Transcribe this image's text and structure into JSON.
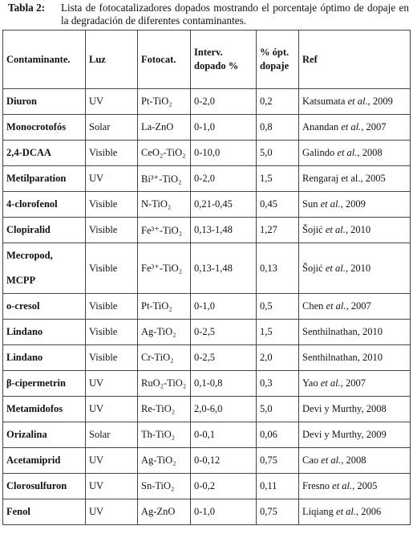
{
  "caption": {
    "label": "Tabla 2:",
    "text": "Lista de fotocatalizadores dopados mostrando el porcentaje óptimo de dopaje en la degradación de diferentes contaminantes."
  },
  "headers": [
    "Contaminante.",
    "Luz",
    "Fotocat.",
    "Interv. dopado %",
    "% ópt. dopaje",
    "Ref"
  ],
  "rows": [
    {
      "contaminante": "Diuron",
      "luz": "UV",
      "fotocat": "Pt-TiO₂",
      "interv": "0-2,0",
      "opt": "0,2",
      "ref_a": "Katsumata ",
      "ref_i": "et al.",
      "ref_b": ", 2009"
    },
    {
      "contaminante": "Monocrotofós",
      "luz": "Solar",
      "fotocat": "La-ZnO",
      "interv": "0-1,0",
      "opt": "0,8",
      "ref_a": "Anandan ",
      "ref_i": "et al.",
      "ref_b": ", 2007"
    },
    {
      "contaminante": "2,4-DCAA",
      "luz": "Visible",
      "fotocat": "CeO₂-TiO₂",
      "interv": "0-10,0",
      "opt": "5,0",
      "ref_a": "Galindo ",
      "ref_i": "et al.",
      "ref_b": ", 2008"
    },
    {
      "contaminante": "Metilparation",
      "luz": "UV",
      "fotocat": "Bi³⁺-TiO₂",
      "interv": "0-2,0",
      "opt": "1,5",
      "ref_a": "Rengaraj et al., 2005",
      "ref_i": "",
      "ref_b": ""
    },
    {
      "contaminante": "4-clorofenol",
      "luz": "Visible",
      "fotocat": "N-TiO₂",
      "interv": "0,21-0,45",
      "opt": "0,45",
      "ref_a": "Sun ",
      "ref_i": "et al.",
      "ref_b": ", 2009"
    },
    {
      "contaminante": "Clopiralid",
      "luz": "Visible",
      "fotocat": "Fe³⁺-TiO₂",
      "interv": "0,13-1,48",
      "opt": "1,27",
      "ref_a": "Šojić ",
      "ref_i": "et al.",
      "ref_b": ", 2010"
    },
    {
      "contaminante": "Mecropod, MCPP",
      "luz": "Visible",
      "fotocat": "Fe³⁺-TiO₂",
      "interv": "0,13-1,48",
      "opt": "0,13",
      "ref_a": "Šojić ",
      "ref_i": "et al.",
      "ref_b": ", 2010"
    },
    {
      "contaminante": "o-cresol",
      "luz": "Visible",
      "fotocat": "Pt-TiO₂",
      "interv": "0-1,0",
      "opt": "0,5",
      "ref_a": "Chen ",
      "ref_i": "et al.",
      "ref_b": ", 2007"
    },
    {
      "contaminante": "Lindano",
      "luz": "Visible",
      "fotocat": "Ag-TiO₂",
      "interv": "0-2,5",
      "opt": "1,5",
      "ref_a": "Senthilnathan, 2010",
      "ref_i": "",
      "ref_b": ""
    },
    {
      "contaminante": "Lindano",
      "luz": "Visible",
      "fotocat": "Cr-TiO₂",
      "interv": "0-2,5",
      "opt": "2,0",
      "ref_a": "Senthilnathan, 2010",
      "ref_i": "",
      "ref_b": ""
    },
    {
      "contaminante": "β-cipermetrin",
      "luz": "UV",
      "fotocat": "RuO₂-TiO₂",
      "interv": "0,1-0,8",
      "opt": "0,3",
      "ref_a": "Yao ",
      "ref_i": "et al.",
      "ref_b": ", 2007"
    },
    {
      "contaminante": "Metamidofos",
      "luz": "UV",
      "fotocat": "Re-TiO₂",
      "interv": "2,0-6,0",
      "opt": "5,0",
      "ref_a": "Devi y Murthy, 2008",
      "ref_i": "",
      "ref_b": ""
    },
    {
      "contaminante": "Orizalina",
      "luz": "Solar",
      "fotocat": "Th-TiO₂",
      "interv": "0-0,1",
      "opt": "0,06",
      "ref_a": "Devi y Murthy, 2009",
      "ref_i": "",
      "ref_b": ""
    },
    {
      "contaminante": "Acetamiprid",
      "luz": "UV",
      "fotocat": "Ag-TiO₂",
      "interv": "0-0,12",
      "opt": "0,75",
      "ref_a": "Cao ",
      "ref_i": "et al.",
      "ref_b": ", 2008"
    },
    {
      "contaminante": "Clorosulfuron",
      "luz": "UV",
      "fotocat": "Sn-TiO₂",
      "interv": "0-0,2",
      "opt": "0,11",
      "ref_a": "Fresno ",
      "ref_i": "et al.",
      "ref_b": ", 2005"
    },
    {
      "contaminante": "Fenol",
      "luz": "UV",
      "fotocat": "Ag-ZnO",
      "interv": "0-1,0",
      "opt": "0,75",
      "ref_a": "Liqiang ",
      "ref_i": "et al.",
      "ref_b": ", 2006"
    }
  ]
}
